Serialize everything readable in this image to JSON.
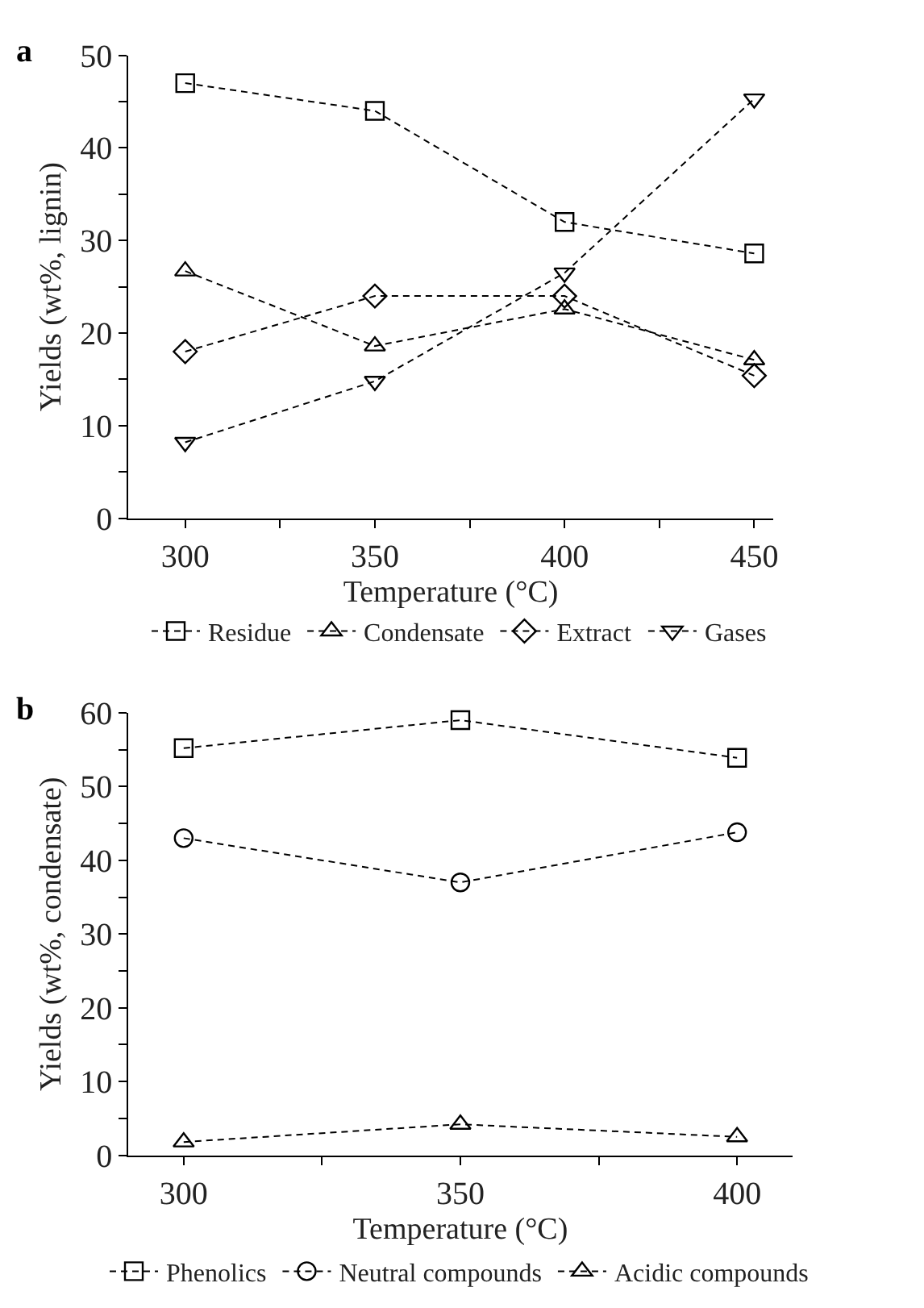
{
  "chart_data": [
    {
      "type": "line",
      "xlabel": "Temperature (°C)",
      "ylabel": "Yields (wt%, lignin)",
      "annotations": [
        "a"
      ],
      "x": [
        300,
        350,
        400,
        450
      ],
      "series": [
        {
          "name": "Residue",
          "color": "#000000",
          "marker": "square",
          "values": [
            47,
            44,
            32,
            28.6
          ]
        },
        {
          "name": "Condensate",
          "color": "#000000",
          "marker": "triangle",
          "values": [
            26.7,
            18.6,
            22.6,
            17.1
          ]
        },
        {
          "name": "Extract",
          "color": "#000000",
          "marker": "diamond",
          "values": [
            18,
            24,
            24,
            15.4
          ]
        },
        {
          "name": "Gases",
          "color": "#000000",
          "marker": "triangle-down",
          "values": [
            8.2,
            14.8,
            26.5,
            45.3
          ]
        }
      ],
      "line_style": "dashed",
      "xlim": [
        285,
        455
      ],
      "ylim": [
        0,
        50
      ],
      "xticks": [
        300,
        {
          "value": 325,
          "label": null
        },
        350,
        {
          "value": 375,
          "label": null
        },
        400,
        {
          "value": 425,
          "label": null
        },
        450
      ],
      "yticks": [
        0,
        {
          "value": 5,
          "label": null
        },
        10,
        {
          "value": 15,
          "label": null
        },
        20,
        {
          "value": 25,
          "label": null
        },
        30,
        {
          "value": 35,
          "label": null
        },
        40,
        {
          "value": 45,
          "label": null
        },
        50
      ],
      "legend": "bottom"
    },
    {
      "type": "line",
      "xlabel": "Temperature (°C)",
      "ylabel": "Yields (wt%, condensate)",
      "annotations": [
        "b"
      ],
      "x": [
        300,
        350,
        400
      ],
      "series": [
        {
          "name": "Phenolics",
          "color": "#000000",
          "marker": "square",
          "values": [
            55.2,
            59,
            53.9
          ]
        },
        {
          "name": "Neutral compounds",
          "color": "#000000",
          "marker": "circle",
          "values": [
            43,
            37,
            43.8
          ]
        },
        {
          "name": "Acidic compounds",
          "color": "#000000",
          "marker": "triangle",
          "values": [
            1.8,
            4.2,
            2.5
          ]
        }
      ],
      "line_style": "dashed",
      "xlim": [
        290,
        410
      ],
      "ylim": [
        0,
        60
      ],
      "xticks": [
        300,
        {
          "value": 325,
          "label": null
        },
        350,
        {
          "value": 375,
          "label": null
        },
        400
      ],
      "yticks": [
        0,
        {
          "value": 5,
          "label": null
        },
        10,
        {
          "value": 15,
          "label": null
        },
        20,
        {
          "value": 25,
          "label": null
        },
        30,
        {
          "value": 35,
          "label": null
        },
        40,
        {
          "value": 45,
          "label": null
        },
        50,
        {
          "value": 55,
          "label": null
        },
        60
      ],
      "legend": "bottom"
    }
  ]
}
